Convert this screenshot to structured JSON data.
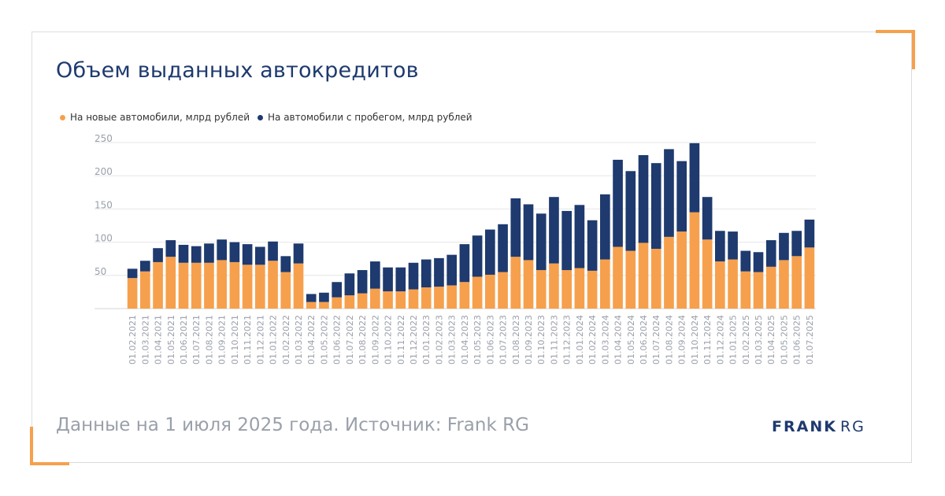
{
  "title": "Объем выданных автокредитов",
  "footer": "Данные на 1 июля 2025 года. Источник: Frank RG",
  "logo": {
    "bold": "FRANK",
    "light": "RG"
  },
  "colors": {
    "accent": "#f6a04d",
    "navy": "#1e3a6e",
    "grid": "#e6e6e6",
    "tick": "#9aa0aa",
    "corner": "#f6a04d"
  },
  "chart_data": {
    "type": "bar",
    "stacked": true,
    "categories": [
      "01.02.2021",
      "01.03.2021",
      "01.04.2021",
      "01.05.2021",
      "01.06.2021",
      "01.07.2021",
      "01.08.2021",
      "01.09.2021",
      "01.10.2021",
      "01.11.2021",
      "01.12.2021",
      "01.01.2022",
      "01.02.2022",
      "01.03.2022",
      "01.04.2022",
      "01.05.2022",
      "01.06.2022",
      "01.07.2022",
      "01.08.2022",
      "01.09.2022",
      "01.10.2022",
      "01.11.2022",
      "01.12.2022",
      "01.01.2023",
      "01.02.2023",
      "01.03.2023",
      "01.04.2023",
      "01.05.2023",
      "01.06.2023",
      "01.07.2023",
      "01.08.2023",
      "01.09.2023",
      "01.10.2023",
      "01.11.2023",
      "01.12.2023",
      "01.01.2024",
      "01.02.2024",
      "01.03.2024",
      "01.04.2024",
      "01.05.2024",
      "01.06.2024",
      "01.07.2024",
      "01.08.2024",
      "01.09.2024",
      "01.10.2024",
      "01.11.2024",
      "01.12.2024",
      "01.01.2025",
      "01.02.2025",
      "01.03.2025",
      "01.04.2025",
      "01.05.2025",
      "01.06.2025",
      "01.07.2025"
    ],
    "series": [
      {
        "name": "На новые автомобили, млрд рублей",
        "color": "#f6a04d",
        "values": [
          46,
          56,
          70,
          78,
          69,
          69,
          69,
          73,
          70,
          66,
          66,
          72,
          55,
          68,
          10,
          10,
          17,
          20,
          23,
          30,
          26,
          26,
          29,
          32,
          33,
          35,
          40,
          48,
          51,
          55,
          78,
          73,
          58,
          68,
          58,
          61,
          57,
          74,
          93,
          87,
          99,
          90,
          108,
          116,
          145,
          104,
          71,
          74,
          56,
          55,
          63,
          73,
          79,
          92
        ]
      },
      {
        "name": "На автомобили с пробегом, млрд рублей",
        "color": "#1e3a6e",
        "values": [
          14,
          16,
          21,
          25,
          27,
          25,
          29,
          31,
          30,
          31,
          27,
          29,
          24,
          30,
          12,
          14,
          23,
          33,
          35,
          41,
          36,
          36,
          40,
          42,
          43,
          46,
          57,
          62,
          68,
          72,
          88,
          84,
          85,
          100,
          89,
          95,
          76,
          98,
          131,
          120,
          132,
          129,
          132,
          106,
          104,
          64,
          46,
          42,
          31,
          30,
          40,
          41,
          38,
          42
        ]
      }
    ],
    "ylim": [
      0,
      250
    ],
    "yticks": [
      50,
      100,
      150,
      200,
      250
    ],
    "grid": true,
    "legend": "top-left"
  }
}
